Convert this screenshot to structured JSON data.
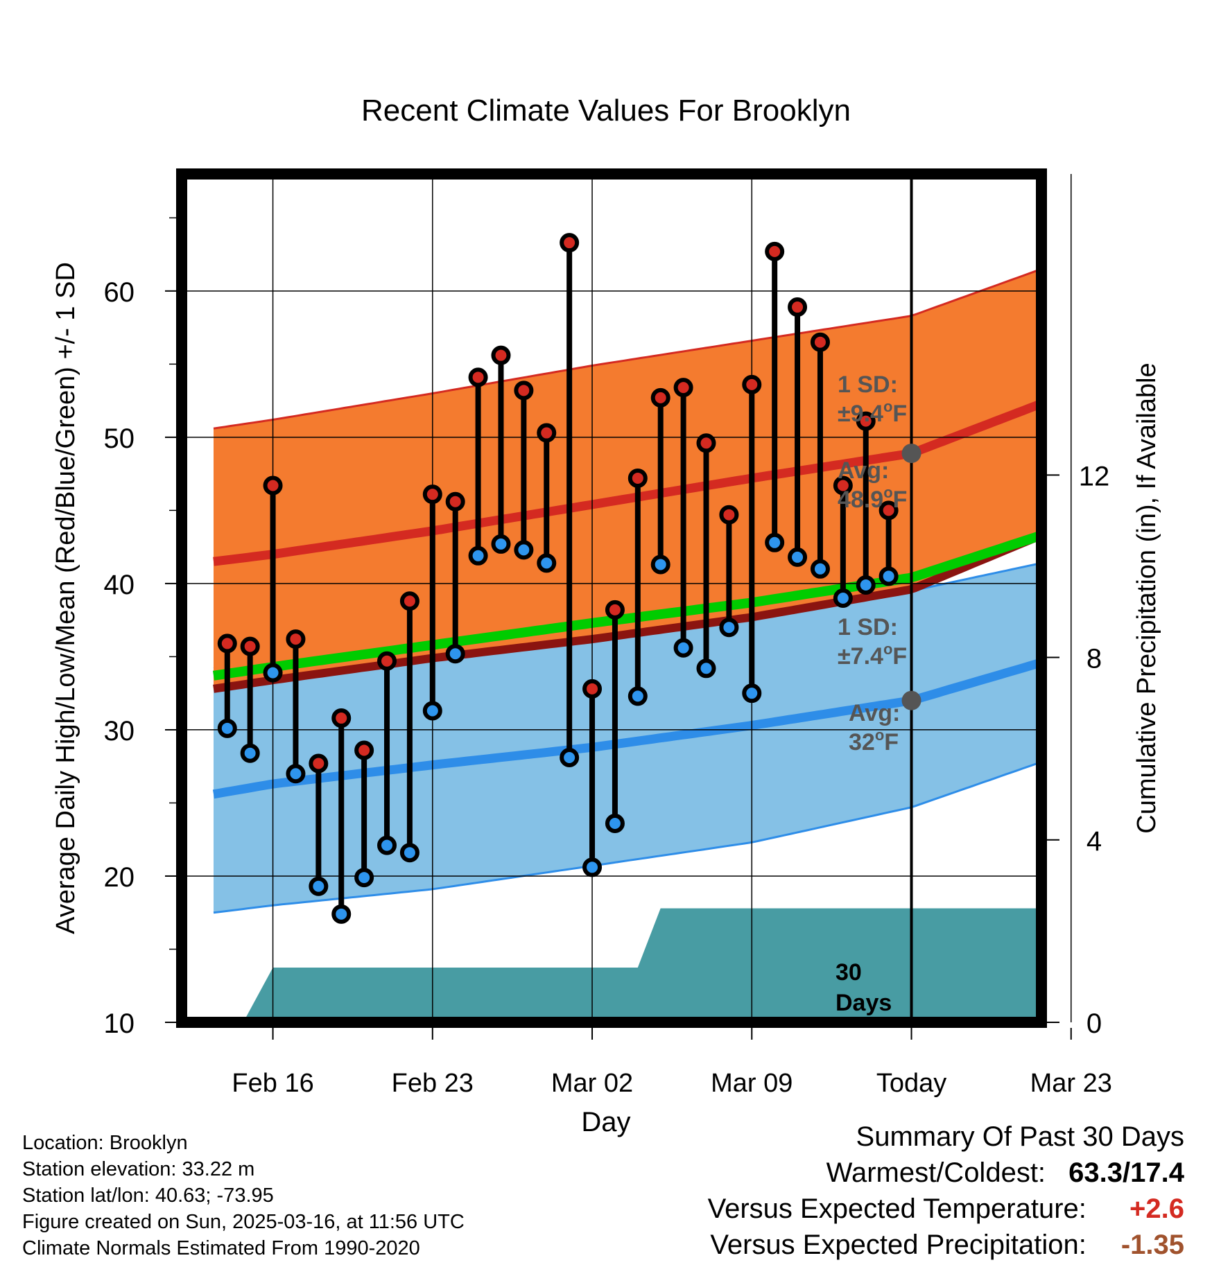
{
  "chart_data": {
    "type": "line",
    "title": "Recent Climate Values For Brooklyn",
    "xlabel": "Day",
    "ylabel": "Average Daily High/Low/Mean (Red/Blue/Green) +/- 1 SD",
    "y2label": "Cumulative Precipitation (in), If Available",
    "ylim": [
      10,
      68
    ],
    "y2lim": [
      0,
      18.6
    ],
    "xlim": [
      -4,
      33.7
    ],
    "yticks": [
      "10",
      "20",
      "30",
      "40",
      "50",
      "60"
    ],
    "y2ticks": [
      "0",
      "4",
      "8",
      "12"
    ],
    "xticks": [
      {
        "x": 0,
        "label": "Feb 16"
      },
      {
        "x": 7,
        "label": "Feb 23"
      },
      {
        "x": 14,
        "label": "Mar 02"
      },
      {
        "x": 21,
        "label": "Mar 09"
      },
      {
        "x": 28,
        "label": "Today"
      },
      {
        "x": 35,
        "label": "Mar 23"
      }
    ],
    "today_x": 28,
    "daily": [
      {
        "x": -2,
        "high": 35.9,
        "low": 30.1
      },
      {
        "x": -1,
        "high": 35.7,
        "low": 28.4
      },
      {
        "x": 0,
        "high": 46.7,
        "low": 33.9
      },
      {
        "x": 1,
        "high": 36.2,
        "low": 27.0
      },
      {
        "x": 2,
        "high": 27.7,
        "low": 19.3
      },
      {
        "x": 3,
        "high": 30.8,
        "low": 17.4
      },
      {
        "x": 4,
        "high": 28.6,
        "low": 19.9
      },
      {
        "x": 5,
        "high": 34.7,
        "low": 22.1
      },
      {
        "x": 6,
        "high": 38.8,
        "low": 21.6
      },
      {
        "x": 7,
        "high": 46.1,
        "low": 31.3
      },
      {
        "x": 8,
        "high": 45.6,
        "low": 35.2
      },
      {
        "x": 9,
        "high": 54.1,
        "low": 41.9
      },
      {
        "x": 10,
        "high": 55.6,
        "low": 42.7
      },
      {
        "x": 11,
        "high": 53.2,
        "low": 42.3
      },
      {
        "x": 12,
        "high": 50.3,
        "low": 41.4
      },
      {
        "x": 13,
        "high": 63.3,
        "low": 28.1
      },
      {
        "x": 14,
        "high": 32.8,
        "low": 20.6
      },
      {
        "x": 15,
        "high": 38.2,
        "low": 23.6
      },
      {
        "x": 16,
        "high": 47.2,
        "low": 32.3
      },
      {
        "x": 17,
        "high": 52.7,
        "low": 41.3
      },
      {
        "x": 18,
        "high": 53.4,
        "low": 35.6
      },
      {
        "x": 19,
        "high": 49.6,
        "low": 34.2
      },
      {
        "x": 20,
        "high": 44.7,
        "low": 37.0
      },
      {
        "x": 21,
        "high": 53.6,
        "low": 32.5
      },
      {
        "x": 22,
        "high": 62.7,
        "low": 42.8
      },
      {
        "x": 23,
        "high": 58.9,
        "low": 41.8
      },
      {
        "x": 24,
        "high": 56.5,
        "low": 41.0
      },
      {
        "x": 25,
        "high": 46.7,
        "low": 39.0
      },
      {
        "x": 26,
        "high": 51.1,
        "low": 39.9
      },
      {
        "x": 27,
        "high": 45.0,
        "low": 40.5
      }
    ],
    "normal_high": {
      "x": [
        -2.6,
        0,
        7,
        14,
        21,
        28,
        33.7
      ],
      "values": [
        41.5,
        42.0,
        43.6,
        45.4,
        47.2,
        48.9,
        52.3
      ]
    },
    "normal_high_upper": {
      "x": [
        -2.6,
        0,
        7,
        14,
        21,
        28,
        33.7
      ],
      "values": [
        50.6,
        51.2,
        53.0,
        54.9,
        56.6,
        58.3,
        61.5
      ]
    },
    "normal_high_lower": {
      "x": [
        -2.6,
        0,
        7,
        14,
        21,
        28,
        33.7
      ],
      "values": [
        32.8,
        33.4,
        34.9,
        36.2,
        37.7,
        39.6,
        43.3
      ]
    },
    "normal_mean": {
      "x": [
        -2.6,
        0,
        7,
        14,
        21,
        28,
        33.7
      ],
      "values": [
        33.7,
        34.3,
        35.8,
        37.3,
        38.7,
        40.4,
        43.3
      ]
    },
    "normal_low": {
      "x": [
        -2.6,
        0,
        7,
        14,
        21,
        28,
        33.7
      ],
      "values": [
        25.6,
        26.3,
        27.6,
        28.8,
        30.3,
        32.0,
        34.6
      ]
    },
    "normal_low_upper": {
      "x": [
        -2.6,
        0,
        7,
        14,
        21,
        28,
        33.7
      ],
      "values": [
        34.2,
        34.8,
        36.0,
        37.4,
        38.6,
        39.5,
        41.4
      ]
    },
    "normal_low_lower": {
      "x": [
        -2.6,
        0,
        7,
        14,
        21,
        28,
        33.7
      ],
      "values": [
        17.5,
        18.0,
        19.1,
        20.7,
        22.3,
        24.7,
        27.8
      ]
    },
    "precip_cumulative": {
      "x": [
        -2.6,
        -1.3,
        0,
        2,
        14,
        16,
        17,
        28,
        33.7
      ],
      "values": [
        0,
        0,
        1.2,
        1.2,
        1.2,
        1.2,
        2.5,
        2.5,
        2.5
      ]
    },
    "high_sd_label": [
      "1 SD:",
      "±9.4",
      "o",
      "F"
    ],
    "high_avg_label": [
      "Avg:",
      "48.9",
      "o",
      "F"
    ],
    "low_sd_label": [
      "1 SD:",
      "±7.4",
      "o",
      "F"
    ],
    "low_avg_label": [
      "Avg:",
      "32",
      "o",
      "F"
    ],
    "today_high_avg": 48.9,
    "today_low_avg": 32.0,
    "days_label": [
      "30",
      "Days"
    ],
    "colors": {
      "high_band": "#f47b2f",
      "high_band_edge": "#d42a21",
      "high_line": "#d42a21",
      "low_band": "#85c1e6",
      "low_band_edge": "#2e8de8",
      "low_line": "#2e8de8",
      "mean_line": "#00cc00",
      "overlap": "#8b1410",
      "precip": "#489ca3",
      "high_marker": "#d42a21",
      "low_marker": "#2e95ee",
      "annotation": "#555555"
    }
  },
  "info": {
    "location": "Location: Brooklyn",
    "elevation": "Station elevation: 33.22 m",
    "latlon": "Station lat/lon: 40.63; -73.95",
    "created": "Figure created on Sun, 2025-03-16, at 11:56 UTC",
    "normals": "Climate Normals Estimated From 1990-2020"
  },
  "summary": {
    "title": "Summary Of Past 30 Days",
    "warmest_label": "Warmest/Coldest:",
    "warmest_value": "63.3/17.4",
    "temp_label": "Versus Expected Temperature:",
    "temp_value": "+2.6",
    "temp_color": "#d42a21",
    "precip_label": "Versus Expected Precipitation:",
    "precip_value": "-1.35",
    "precip_color": "#a0522d"
  }
}
